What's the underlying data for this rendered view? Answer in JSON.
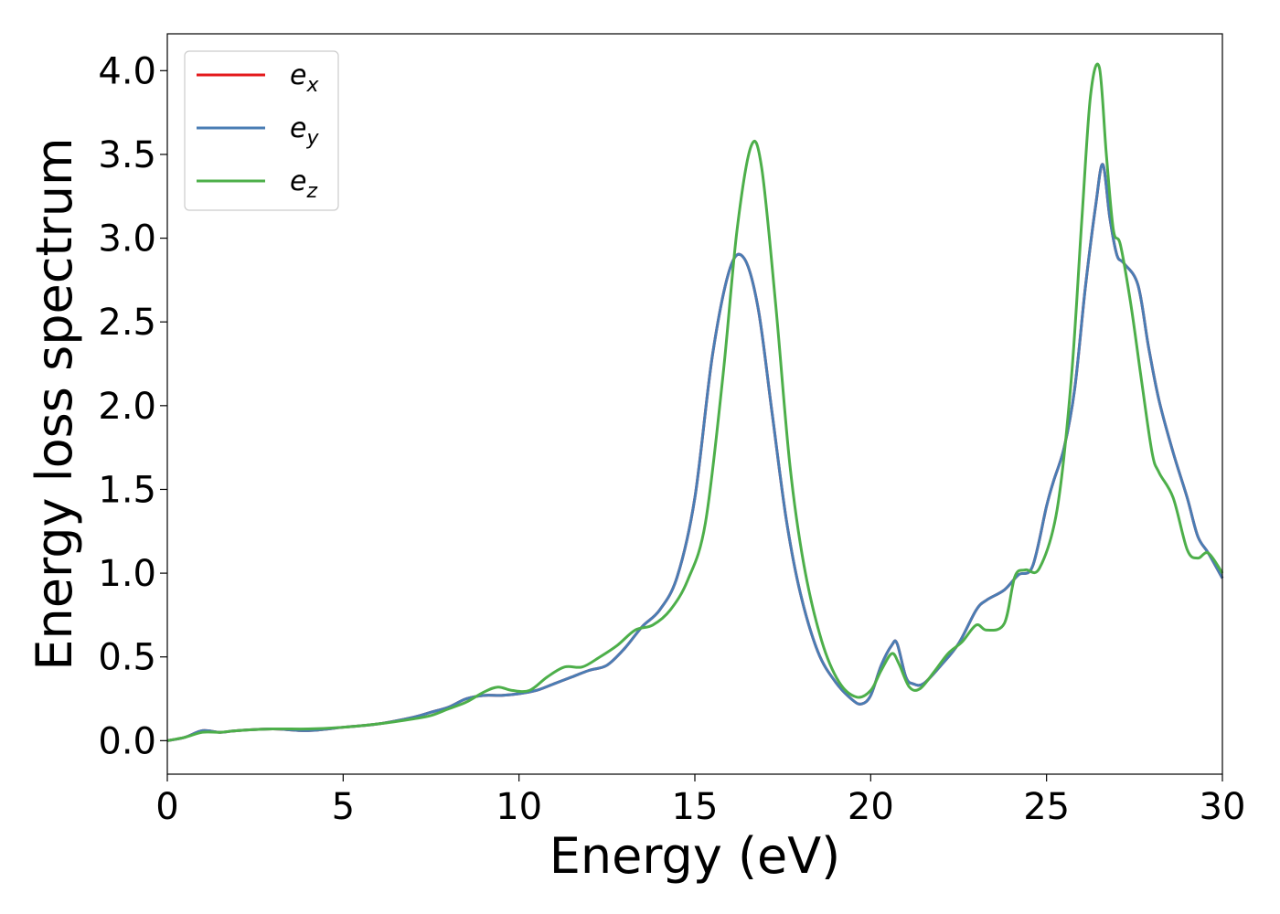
{
  "chart_data": {
    "type": "line",
    "xlabel": "Energy (eV)",
    "ylabel": "Energy loss spectrum",
    "xlim": [
      0,
      30
    ],
    "ylim": [
      -0.2,
      4.22
    ],
    "xticks": [
      0,
      5,
      10,
      15,
      20,
      25,
      30
    ],
    "xtick_labels": [
      "0",
      "5",
      "10",
      "15",
      "20",
      "25",
      "30"
    ],
    "yticks": [
      0.0,
      0.5,
      1.0,
      1.5,
      2.0,
      2.5,
      3.0,
      3.5,
      4.0
    ],
    "ytick_labels": [
      "0.0",
      "0.5",
      "1.0",
      "1.5",
      "2.0",
      "2.5",
      "3.0",
      "3.5",
      "4.0"
    ],
    "grid": false,
    "legend": {
      "placement": "top-left",
      "entries": [
        {
          "base": "e",
          "sub": "x",
          "series": 0
        },
        {
          "base": "e",
          "sub": "y",
          "series": 1
        },
        {
          "base": "e",
          "sub": "z",
          "series": 2
        }
      ]
    },
    "series": [
      {
        "name": "e_x",
        "color": "#e41a1c",
        "x": [
          0,
          0.5,
          1.0,
          1.5,
          2,
          3,
          4,
          5,
          6,
          7,
          7.5,
          8,
          8.5,
          9,
          9.5,
          10,
          10.5,
          11,
          11.5,
          12,
          12.5,
          13,
          13.5,
          14,
          14.5,
          15,
          15.5,
          16,
          16.4,
          16.8,
          17.2,
          17.6,
          18,
          18.5,
          19,
          19.5,
          19.75,
          20,
          20.3,
          20.6,
          20.75,
          21,
          21.2,
          21.5,
          22,
          22.5,
          23,
          23.3,
          23.8,
          24.2,
          24.6,
          25,
          25.2,
          25.5,
          25.8,
          26.1,
          26.4,
          26.6,
          26.8,
          27,
          27.2,
          27.6,
          27.9,
          28.2,
          28.6,
          29,
          29.3,
          29.6,
          30
        ],
        "y": [
          0.0,
          0.02,
          0.06,
          0.05,
          0.06,
          0.07,
          0.06,
          0.08,
          0.1,
          0.14,
          0.17,
          0.2,
          0.25,
          0.27,
          0.27,
          0.28,
          0.3,
          0.34,
          0.38,
          0.42,
          0.45,
          0.55,
          0.68,
          0.78,
          0.98,
          1.45,
          2.3,
          2.82,
          2.88,
          2.58,
          1.95,
          1.32,
          0.88,
          0.53,
          0.35,
          0.24,
          0.22,
          0.27,
          0.45,
          0.57,
          0.58,
          0.38,
          0.34,
          0.34,
          0.45,
          0.58,
          0.78,
          0.84,
          0.9,
          0.99,
          1.04,
          1.4,
          1.55,
          1.75,
          2.1,
          2.7,
          3.2,
          3.44,
          3.12,
          2.9,
          2.85,
          2.72,
          2.35,
          2.03,
          1.72,
          1.45,
          1.22,
          1.12,
          0.97
        ]
      },
      {
        "name": "e_y",
        "color": "#4a7db4",
        "x": [
          0,
          0.5,
          1.0,
          1.5,
          2,
          3,
          4,
          5,
          6,
          7,
          7.5,
          8,
          8.5,
          9,
          9.5,
          10,
          10.5,
          11,
          11.5,
          12,
          12.5,
          13,
          13.5,
          14,
          14.5,
          15,
          15.5,
          16,
          16.4,
          16.8,
          17.2,
          17.6,
          18,
          18.5,
          19,
          19.5,
          19.75,
          20,
          20.3,
          20.6,
          20.75,
          21,
          21.2,
          21.5,
          22,
          22.5,
          23,
          23.3,
          23.8,
          24.2,
          24.6,
          25,
          25.2,
          25.5,
          25.8,
          26.1,
          26.4,
          26.6,
          26.8,
          27,
          27.2,
          27.6,
          27.9,
          28.2,
          28.6,
          29,
          29.3,
          29.6,
          30
        ],
        "y": [
          0.0,
          0.02,
          0.06,
          0.05,
          0.06,
          0.07,
          0.06,
          0.08,
          0.1,
          0.14,
          0.17,
          0.2,
          0.25,
          0.27,
          0.27,
          0.28,
          0.3,
          0.34,
          0.38,
          0.42,
          0.45,
          0.55,
          0.68,
          0.78,
          0.98,
          1.45,
          2.3,
          2.82,
          2.88,
          2.58,
          1.95,
          1.32,
          0.88,
          0.53,
          0.35,
          0.24,
          0.22,
          0.27,
          0.45,
          0.57,
          0.58,
          0.38,
          0.34,
          0.34,
          0.45,
          0.58,
          0.78,
          0.84,
          0.9,
          0.99,
          1.04,
          1.4,
          1.55,
          1.75,
          2.1,
          2.7,
          3.2,
          3.44,
          3.12,
          2.9,
          2.85,
          2.72,
          2.35,
          2.03,
          1.72,
          1.45,
          1.22,
          1.12,
          0.97
        ]
      },
      {
        "name": "e_z",
        "color": "#4daf4a",
        "x": [
          0,
          0.5,
          1.0,
          1.5,
          2,
          3,
          4,
          5,
          6,
          7,
          7.5,
          8,
          8.5,
          9,
          9.4,
          9.8,
          10.3,
          10.8,
          11.3,
          11.8,
          12.3,
          12.8,
          13.3,
          13.8,
          14.3,
          14.8,
          15.3,
          15.8,
          16.2,
          16.6,
          16.9,
          17.3,
          17.7,
          18.1,
          18.6,
          19.1,
          19.6,
          20,
          20.3,
          20.6,
          20.8,
          21.1,
          21.4,
          21.8,
          22.2,
          22.6,
          23,
          23.3,
          23.8,
          24.1,
          24.4,
          24.8,
          25.3,
          25.7,
          26.0,
          26.25,
          26.5,
          26.7,
          26.9,
          27.1,
          27.4,
          27.7,
          28.0,
          28.2,
          28.6,
          29.0,
          29.3,
          29.6,
          30
        ],
        "y": [
          0.0,
          0.02,
          0.05,
          0.05,
          0.06,
          0.07,
          0.07,
          0.08,
          0.1,
          0.13,
          0.15,
          0.19,
          0.23,
          0.29,
          0.32,
          0.3,
          0.3,
          0.38,
          0.44,
          0.44,
          0.5,
          0.57,
          0.66,
          0.69,
          0.78,
          0.96,
          1.3,
          2.18,
          3.05,
          3.55,
          3.42,
          2.6,
          1.65,
          1.05,
          0.6,
          0.35,
          0.26,
          0.3,
          0.42,
          0.52,
          0.46,
          0.32,
          0.31,
          0.41,
          0.52,
          0.59,
          0.69,
          0.66,
          0.7,
          0.98,
          1.02,
          1.03,
          1.38,
          2.15,
          3.1,
          3.85,
          4.02,
          3.5,
          3.05,
          2.96,
          2.6,
          2.15,
          1.72,
          1.6,
          1.45,
          1.14,
          1.09,
          1.12,
          1.0
        ]
      }
    ]
  }
}
